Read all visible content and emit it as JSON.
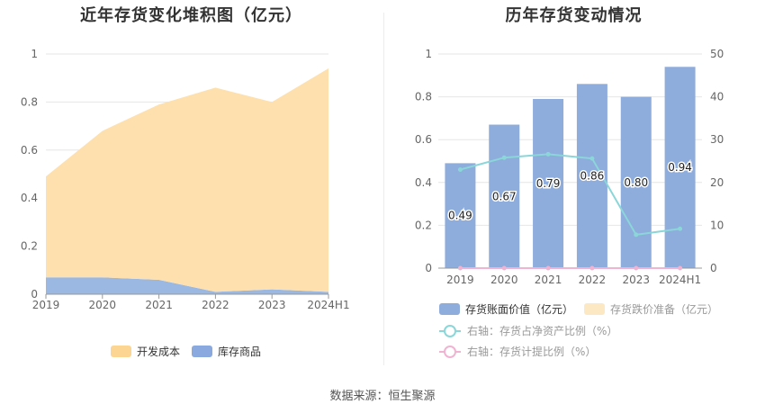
{
  "left_chart": {
    "title": "近年存货变化堆积图（亿元）"
  },
  "right_chart": {
    "title": "历年存货变动情况"
  },
  "source": "数据来源：恒生聚源",
  "chart_data": [
    {
      "type": "area",
      "stacked": true,
      "title": "近年存货变化堆积图（亿元）",
      "categories": [
        "2019",
        "2020",
        "2021",
        "2022",
        "2023",
        "2024H1"
      ],
      "ylim": [
        0,
        1
      ],
      "yticks": [
        "0",
        "0.2",
        "0.4",
        "0.6",
        "0.8",
        "1"
      ],
      "grid": true,
      "legend_position": "bottom",
      "series": [
        {
          "name": "库存商品",
          "color": "#9bb8e3",
          "values": [
            0.07,
            0.07,
            0.06,
            0.01,
            0.02,
            0.01
          ]
        },
        {
          "name": "开发成本",
          "color": "#fde0ae",
          "values": [
            0.42,
            0.61,
            0.73,
            0.85,
            0.78,
            0.93
          ]
        }
      ],
      "legend": [
        {
          "name": "开发成本",
          "color": "#fcd592"
        },
        {
          "name": "库存商品",
          "color": "#8aaadf"
        }
      ]
    },
    {
      "type": "bar",
      "title": "历年存货变动情况",
      "categories": [
        "2019",
        "2020",
        "2021",
        "2022",
        "2023",
        "2024H1"
      ],
      "ylim": [
        0,
        1
      ],
      "yticks": [
        "0",
        "0.2",
        "0.4",
        "0.6",
        "0.8",
        "1"
      ],
      "y2lim": [
        0,
        50
      ],
      "y2ticks": [
        "0",
        "10",
        "20",
        "30",
        "40",
        "50"
      ],
      "grid": true,
      "legend_position": "bottom",
      "series": [
        {
          "name": "存货账面价值（亿元）",
          "kind": "bar",
          "axis": "left",
          "color": "#8eacdc",
          "values": [
            0.49,
            0.67,
            0.79,
            0.86,
            0.8,
            0.94
          ],
          "labels": [
            "0.49",
            "0.67",
            "0.79",
            "0.86",
            "0.80",
            "0.94"
          ]
        },
        {
          "name": "存货跌价准备（亿元）",
          "kind": "bar",
          "axis": "left",
          "color": "#fde8c4",
          "values": [
            0,
            0,
            0,
            0,
            0,
            0
          ]
        },
        {
          "name": "右轴：存货占净资产比例（%）",
          "kind": "line",
          "axis": "right",
          "color": "#8ad6d8",
          "values": [
            23,
            25.8,
            26.6,
            25.6,
            7.8,
            9.2
          ]
        },
        {
          "name": "右轴：存货计提比例（%）",
          "kind": "line",
          "axis": "right",
          "color": "#f0b4d2",
          "values": [
            0,
            0,
            0,
            0,
            0,
            0
          ]
        }
      ]
    }
  ]
}
